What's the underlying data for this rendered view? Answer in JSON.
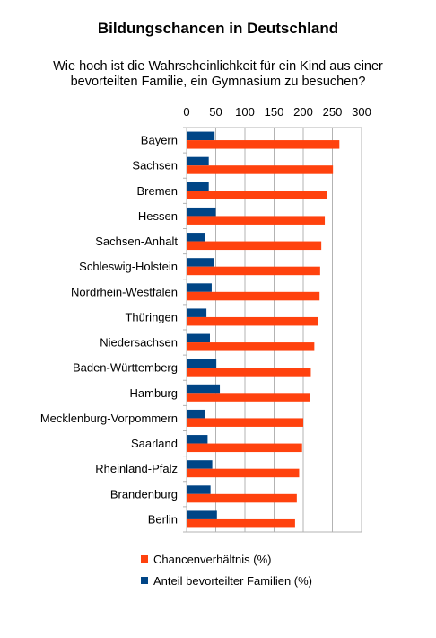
{
  "chart_data": {
    "type": "bar",
    "orientation": "horizontal",
    "title": "Bildungschancen in Deutschland",
    "subtitle": "Wie hoch ist die Wahrscheinlichkeit für ein Kind aus einer\nbevorteilten Familie, ein Gymnasium zu besuchen?",
    "xlabel": "",
    "ylabel": "",
    "xlim": [
      0,
      300
    ],
    "xticks": [
      "0",
      "50",
      "100",
      "150",
      "200",
      "250",
      "300"
    ],
    "grid": true,
    "legend_position": "bottom",
    "categories": [
      "Bayern",
      "Sachsen",
      "Bremen",
      "Hessen",
      "Sachsen-Anhalt",
      "Schleswig-Holstein",
      "Nordrhein-Westfalen",
      "Thüringen",
      "Niedersachsen",
      "Baden-Württemberg",
      "Hamburg",
      "Mecklenburg-Vorpommern",
      "Saarland",
      "Rheinland-Pfalz",
      "Brandenburg",
      "Berlin"
    ],
    "series": [
      {
        "name": "Chancenverhältnis (%)",
        "color": "#ff420e",
        "values": [
          262,
          251,
          241,
          237,
          231,
          229,
          228,
          225,
          219,
          213,
          212,
          200,
          198,
          193,
          189,
          186
        ]
      },
      {
        "name": "Anteil bevorteilter Familien (%)",
        "color": "#004586",
        "values": [
          48,
          38,
          38,
          50,
          32,
          47,
          43,
          34,
          40,
          51,
          57,
          32,
          36,
          44,
          41,
          52
        ]
      }
    ]
  }
}
